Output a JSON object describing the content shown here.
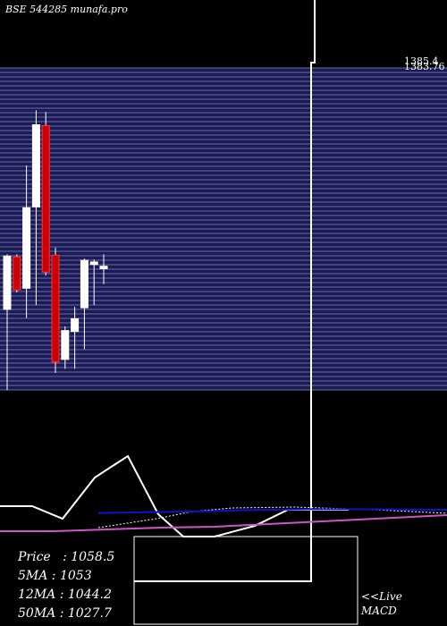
{
  "header": {
    "watermark": "BSE 544285 munafa.pro"
  },
  "info": {
    "price": "Price   : 1058.5",
    "ma5": "5MA : 1053",
    "ma12": "12MA : 1044.2",
    "ma50": "50MA : 1027.7"
  },
  "macd_label": {
    "line1": "<<Live",
    "line2": "MACD"
  },
  "colors": {
    "up_candle": "#ffffff",
    "down_candle": "#cc0000",
    "grid_band": "#1a1a55",
    "grid_line": "#6a6aa8",
    "macd_line": "#ffffff",
    "ma_blue": "#1111cc",
    "ma_magenta": "#cc55cc"
  },
  "chart_data": {
    "type": "candlestick",
    "y_axis_labels": [
      "1385.4",
      "1383.76"
    ],
    "ylim": [
      1010,
      1390
    ],
    "candles": [
      {
        "open": 1105,
        "high": 1170,
        "low": 1010,
        "close": 1168,
        "color": "up"
      },
      {
        "open": 1167,
        "high": 1170,
        "low": 1125,
        "close": 1128,
        "color": "down"
      },
      {
        "open": 1130,
        "high": 1275,
        "low": 1095,
        "close": 1225,
        "color": "up"
      },
      {
        "open": 1226,
        "high": 1340,
        "low": 1110,
        "close": 1323,
        "color": "up"
      },
      {
        "open": 1322,
        "high": 1338,
        "low": 1145,
        "close": 1149,
        "color": "down"
      },
      {
        "open": 1169,
        "high": 1178,
        "low": 1030,
        "close": 1043,
        "color": "down"
      },
      {
        "open": 1046,
        "high": 1085,
        "low": 1035,
        "close": 1080,
        "color": "up"
      },
      {
        "open": 1079,
        "high": 1108,
        "low": 1035,
        "close": 1094,
        "color": "up"
      },
      {
        "open": 1107,
        "high": 1165,
        "low": 1058,
        "close": 1163,
        "color": "up"
      },
      {
        "open": 1161,
        "high": 1164,
        "low": 1110,
        "close": 1158,
        "color": "up"
      },
      {
        "open": 1153,
        "high": 1170,
        "low": 1135,
        "close": 1156,
        "color": "up"
      }
    ],
    "macd": [
      0.2,
      0.21,
      0.17,
      0.22,
      0.26,
      0.18,
      0.15,
      0.1,
      0.0,
      0.0,
      0.3,
      0.84,
      0.86
    ],
    "ma_blue": [
      0.24,
      0.25,
      0.26,
      0.27,
      0.29,
      0.3,
      0.31,
      0.31,
      0.31,
      0.3,
      0.3
    ],
    "ma_magenta": [
      0.12,
      0.13,
      0.15,
      0.17,
      0.19,
      0.21,
      0.23,
      0.25,
      0.27
    ]
  }
}
